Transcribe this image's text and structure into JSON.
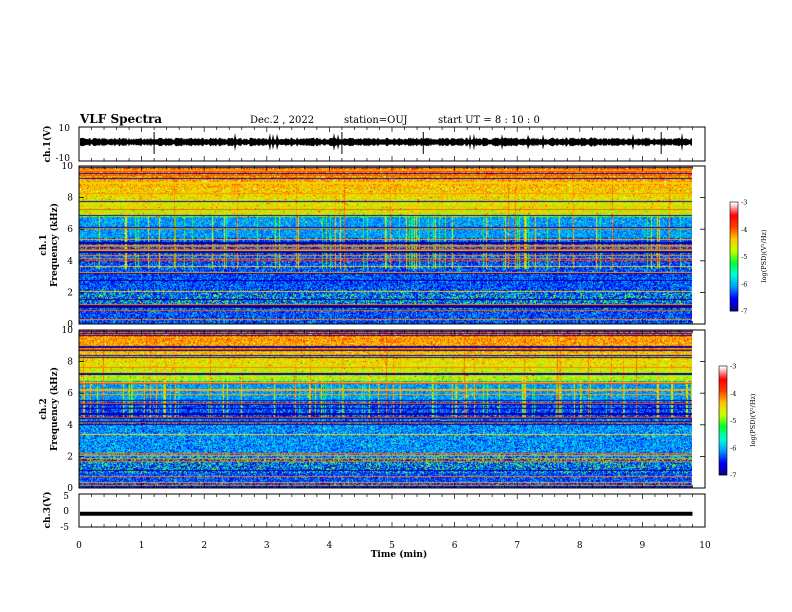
{
  "header": {
    "title": "VLF Spectra",
    "date": "Dec.2 , 2022",
    "station": "station=OUJ",
    "start": "start UT = 8 : 10 : 0"
  },
  "colors": {
    "colormap": [
      "#08008a",
      "#0000ff",
      "#00a0ff",
      "#00ffd8",
      "#00ff30",
      "#c8ff00",
      "#ffc800",
      "#ff4000",
      "#ff0000",
      "#ffffff"
    ]
  },
  "chart_data": [
    {
      "type": "line",
      "name": "ch1-waveform",
      "ylabel": "ch.1(V)",
      "ylim": [
        -10,
        10
      ],
      "yticks": [
        "10",
        "-10"
      ],
      "xlim": [
        0,
        10
      ],
      "note_level": 0
    },
    {
      "type": "heatmap",
      "name": "ch1-spectrogram",
      "ylabel": "ch.1\nFrequency (kHz)",
      "ylabel_lines": [
        "ch.1",
        "Frequency (kHz)"
      ],
      "ylim": [
        0,
        10
      ],
      "yticks": [
        "0",
        "2",
        "4",
        "6",
        "8",
        "10"
      ],
      "xlim": [
        0,
        10
      ],
      "data_end_min": 9.8,
      "colorbar": {
        "label": "log(PSD)(V²/Hz)",
        "range": [
          -7,
          -3
        ],
        "ticks": [
          "-3",
          "-4",
          "-5",
          "-6",
          "-7"
        ]
      }
    },
    {
      "type": "heatmap",
      "name": "ch2-spectrogram",
      "ylabel": "ch.2\nFrequency (kHz)",
      "ylabel_lines": [
        "ch.2",
        "Frequency (kHz)"
      ],
      "ylim": [
        0,
        10
      ],
      "yticks": [
        "0",
        "2",
        "4",
        "6",
        "8",
        "10"
      ],
      "xlim": [
        0,
        10
      ],
      "data_end_min": 9.8,
      "colorbar": {
        "label": "log(PSD)(V²/Hz)",
        "range": [
          -7,
          -3
        ],
        "ticks": [
          "-3",
          "-4",
          "-5",
          "-6",
          "-7"
        ]
      }
    },
    {
      "type": "line",
      "name": "ch3-waveform",
      "ylabel": "ch.3(V)",
      "ylim": [
        -5,
        5
      ],
      "yticks": [
        "5",
        "0",
        "-5"
      ],
      "xlim": [
        0,
        10
      ],
      "xlabel": "Time (min)",
      "xticks": [
        "0",
        "1",
        "2",
        "3",
        "4",
        "5",
        "6",
        "7",
        "8",
        "9",
        "10"
      ],
      "level": -1
    }
  ]
}
